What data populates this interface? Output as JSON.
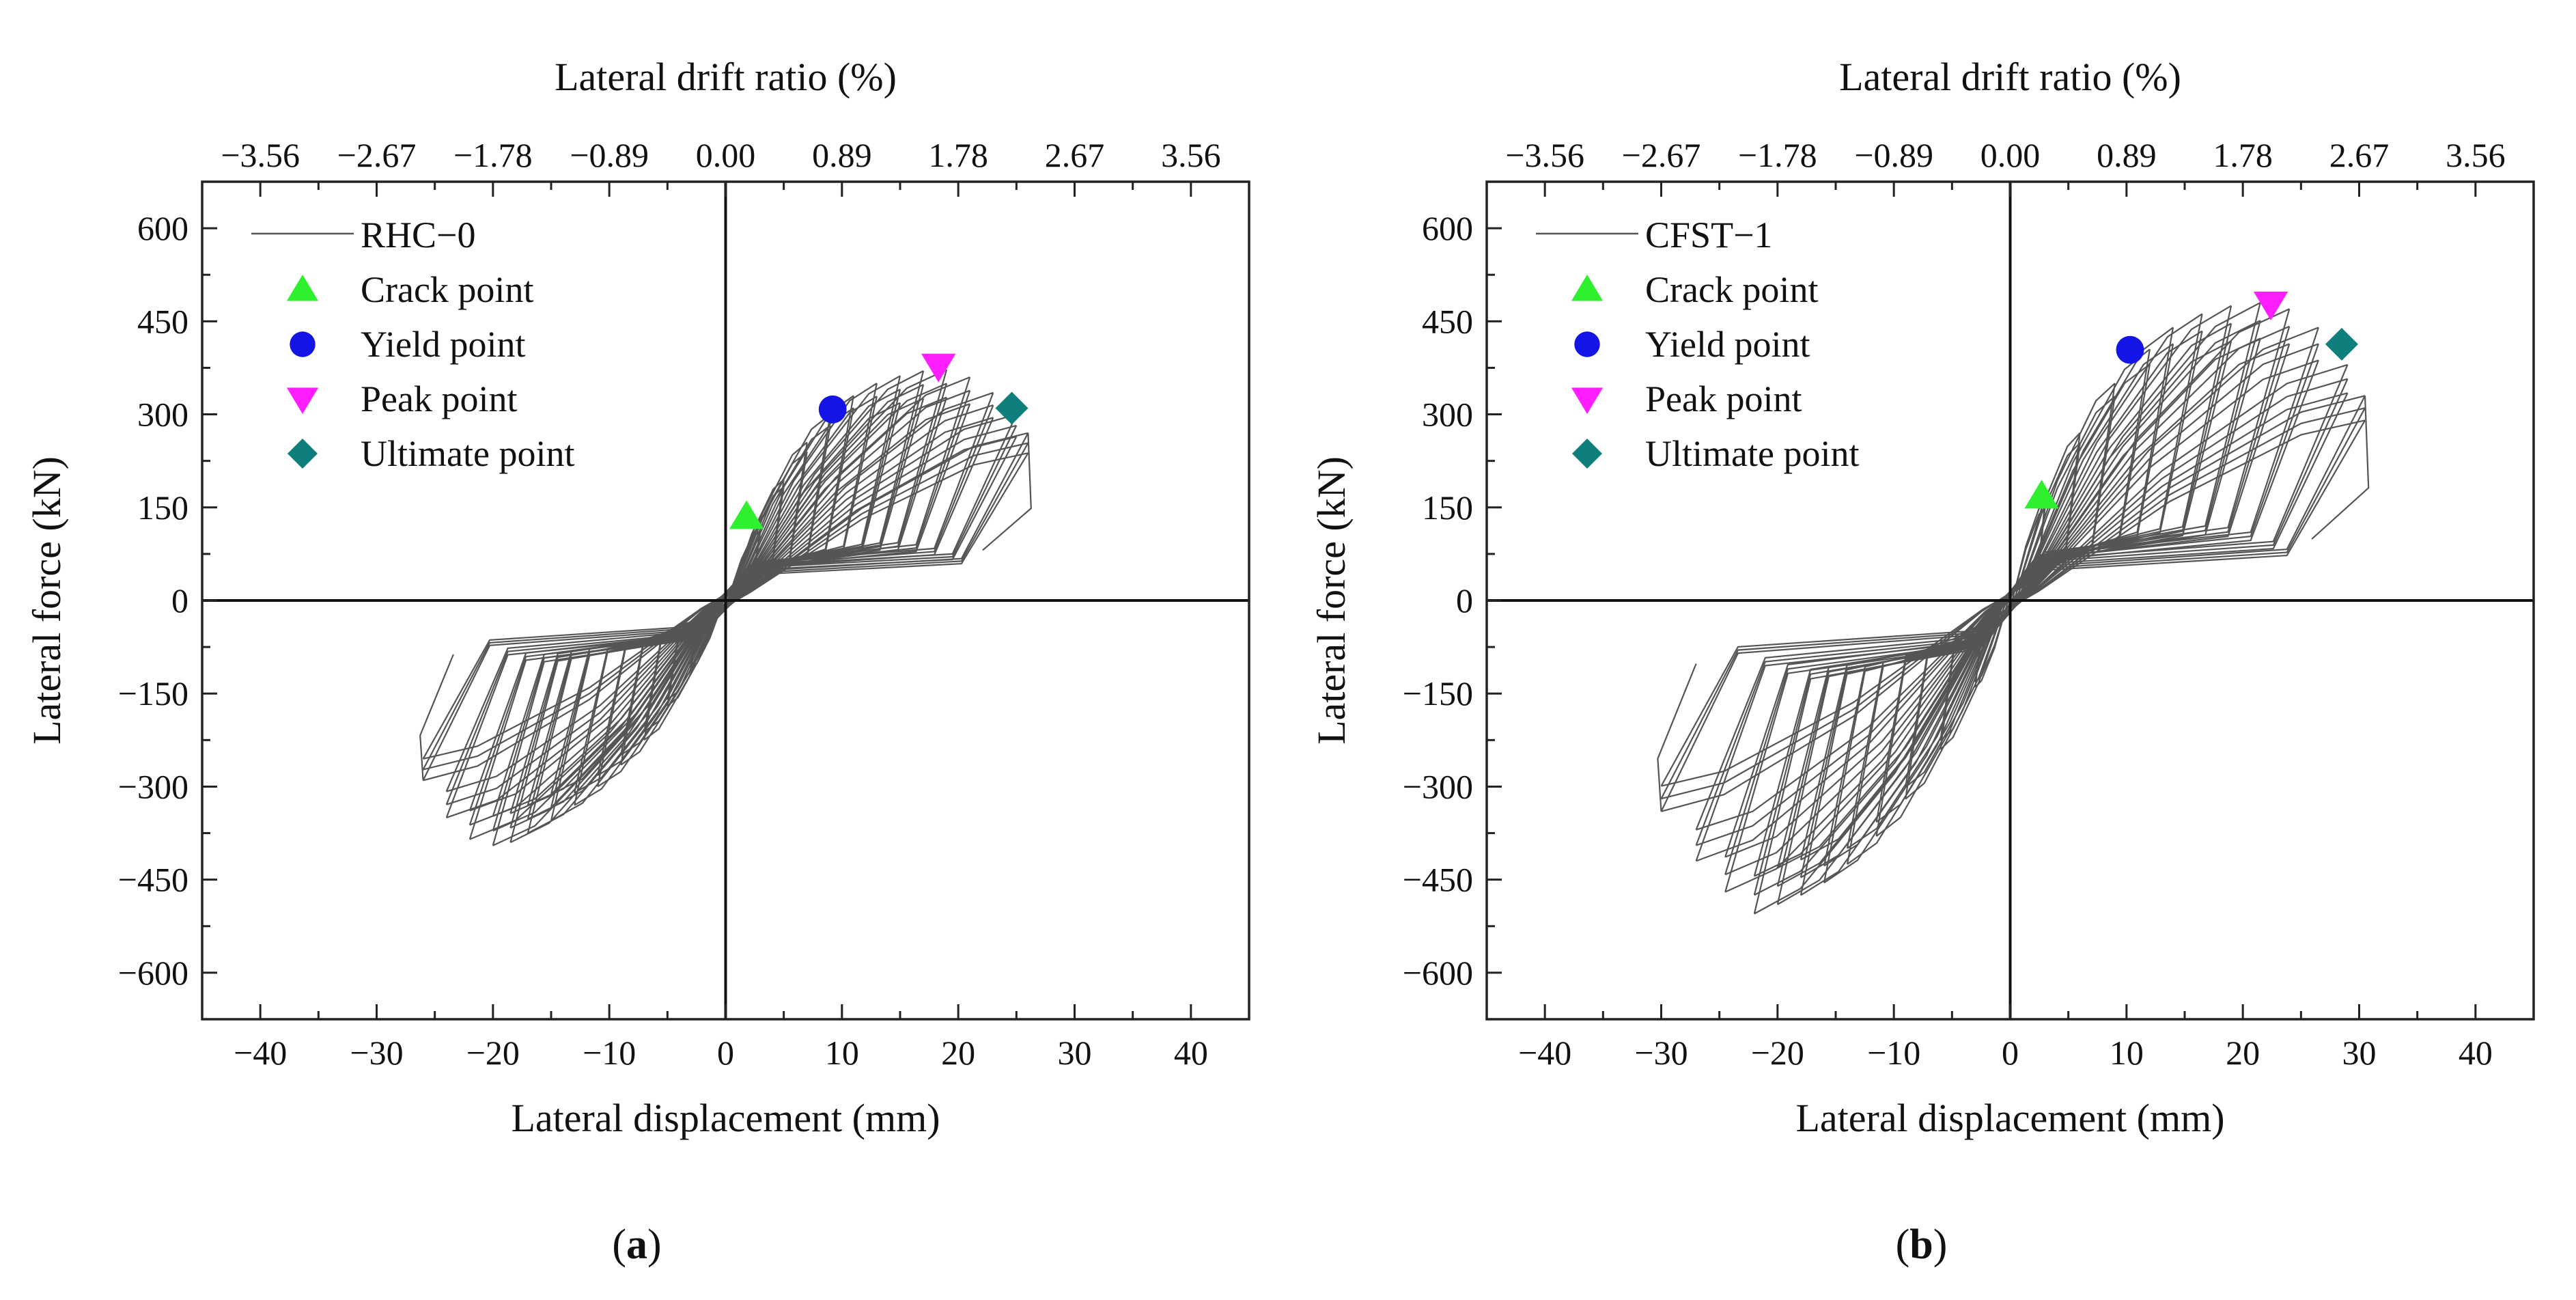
{
  "colors": {
    "crack": "#2ef02e",
    "yield": "#1414e6",
    "peak": "#ff1eff",
    "ultimate": "#0e7f7c",
    "curve": "#555555"
  },
  "chart_data": [
    {
      "type": "line",
      "panel_label": "a",
      "title": "",
      "xlabel": "Lateral displacement (mm)",
      "ylabel": "Lateral force (kN)",
      "x2label": "Lateral drift ratio (%)",
      "xlim": [
        -45,
        45
      ],
      "ylim": [
        -675,
        675
      ],
      "x_ticks": [
        -40,
        -30,
        -20,
        -10,
        0,
        10,
        20,
        30,
        40
      ],
      "x_tick_labels": [
        "−40",
        "−30",
        "−20",
        "−10",
        "0",
        "10",
        "20",
        "30",
        "40"
      ],
      "y_ticks": [
        -600,
        -450,
        -300,
        -150,
        0,
        150,
        300,
        450,
        600
      ],
      "y_tick_labels": [
        "−600",
        "−450",
        "−300",
        "−150",
        "0",
        "150",
        "300",
        "450",
        "600"
      ],
      "x2_ticks": [
        -40,
        -30,
        -20,
        -10,
        0,
        10,
        20,
        30,
        40
      ],
      "x2_tick_labels": [
        "−3.56",
        "−2.67",
        "−1.78",
        "−0.89",
        "0.00",
        "0.89",
        "1.78",
        "2.67",
        "3.56"
      ],
      "legend": {
        "position": "top-left",
        "series_label": "RHC−0",
        "entries": [
          "Crack point",
          "Yield point",
          "Peak point",
          "Ultimate point"
        ]
      },
      "series": [
        {
          "name": "RHC−0",
          "style": "hysteresis",
          "cycles": [
            {
              "dp": 3,
              "fp": 120,
              "dn": -3,
              "fn": -110
            },
            {
              "dp": 5,
              "fp": 195,
              "dn": -5,
              "fn": -170
            },
            {
              "dp": 7,
              "fp": 255,
              "dn": -7,
              "fn": -225
            },
            {
              "dp": 9,
              "fp": 300,
              "dn": -9,
              "fn": -265
            },
            {
              "dp": 11,
              "fp": 330,
              "dn": -11,
              "fn": -300
            },
            {
              "dp": 13,
              "fp": 350,
              "dn": -13,
              "fn": -330
            },
            {
              "dp": 15,
              "fp": 362,
              "dn": -15,
              "fn": -355
            },
            {
              "dp": 17,
              "fp": 370,
              "dn": -17,
              "fn": -375
            },
            {
              "dp": 19,
              "fp": 372,
              "dn": -18.5,
              "fn": -390
            },
            {
              "dp": 21,
              "fp": 360,
              "dn": -20,
              "fn": -395
            },
            {
              "dp": 23,
              "fp": 335,
              "dn": -22,
              "fn": -385
            },
            {
              "dp": 25,
              "fp": 300,
              "dn": -24,
              "fn": -350
            },
            {
              "dp": 26,
              "fp": 270,
              "dn": -26,
              "fn": -290
            }
          ]
        }
      ],
      "key_points": [
        {
          "name": "Crack point",
          "marker": "triangle-up",
          "x": 1.8,
          "y": 135
        },
        {
          "name": "Yield point",
          "marker": "circle",
          "x": 9.2,
          "y": 308
        },
        {
          "name": "Peak point",
          "marker": "triangle-down",
          "x": 18.3,
          "y": 378
        },
        {
          "name": "Ultimate point",
          "marker": "diamond",
          "x": 24.6,
          "y": 310
        }
      ]
    },
    {
      "type": "line",
      "panel_label": "b",
      "title": "",
      "xlabel": "Lateral displacement (mm)",
      "ylabel": "Lateral force (kN)",
      "x2label": "Lateral drift ratio (%)",
      "xlim": [
        -45,
        45
      ],
      "ylim": [
        -675,
        675
      ],
      "x_ticks": [
        -40,
        -30,
        -20,
        -10,
        0,
        10,
        20,
        30,
        40
      ],
      "x_tick_labels": [
        "−40",
        "−30",
        "−20",
        "−10",
        "0",
        "10",
        "20",
        "30",
        "40"
      ],
      "y_ticks": [
        -600,
        -450,
        -300,
        -150,
        0,
        150,
        300,
        450,
        600
      ],
      "y_tick_labels": [
        "−600",
        "−450",
        "−300",
        "−150",
        "0",
        "150",
        "300",
        "450",
        "600"
      ],
      "x2_ticks": [
        -40,
        -30,
        -20,
        -10,
        0,
        10,
        20,
        30,
        40
      ],
      "x2_tick_labels": [
        "−3.56",
        "−2.67",
        "−1.78",
        "−0.89",
        "0.00",
        "0.89",
        "1.78",
        "2.67",
        "3.56"
      ],
      "legend": {
        "position": "top-left",
        "series_label": "CFST−1",
        "entries": [
          "Crack point",
          "Yield point",
          "Peak point",
          "Ultimate point"
        ]
      },
      "series": [
        {
          "name": "CFST−1",
          "style": "hysteresis",
          "cycles": [
            {
              "dp": 3,
              "fp": 160,
              "dn": -3,
              "fn": -140
            },
            {
              "dp": 6,
              "fp": 270,
              "dn": -6,
              "fn": -240
            },
            {
              "dp": 9,
              "fp": 350,
              "dn": -9,
              "fn": -320
            },
            {
              "dp": 12,
              "fp": 405,
              "dn": -11.5,
              "fn": -380
            },
            {
              "dp": 14,
              "fp": 440,
              "dn": -14,
              "fn": -425
            },
            {
              "dp": 16.5,
              "fp": 462,
              "dn": -16,
              "fn": -455
            },
            {
              "dp": 19,
              "fp": 475,
              "dn": -18,
              "fn": -475
            },
            {
              "dp": 21.5,
              "fp": 480,
              "dn": -20,
              "fn": -490
            },
            {
              "dp": 24,
              "fp": 470,
              "dn": -22,
              "fn": -505
            },
            {
              "dp": 26.5,
              "fp": 440,
              "dn": -24.5,
              "fn": -470
            },
            {
              "dp": 29,
              "fp": 380,
              "dn": -27,
              "fn": -420
            },
            {
              "dp": 30.5,
              "fp": 330,
              "dn": -30,
              "fn": -340
            }
          ]
        }
      ],
      "key_points": [
        {
          "name": "Crack point",
          "marker": "triangle-up",
          "x": 2.7,
          "y": 168
        },
        {
          "name": "Yield point",
          "marker": "circle",
          "x": 10.3,
          "y": 404
        },
        {
          "name": "Peak point",
          "marker": "triangle-down",
          "x": 22.4,
          "y": 478
        },
        {
          "name": "Ultimate point",
          "marker": "diamond",
          "x": 28.5,
          "y": 413
        }
      ]
    }
  ]
}
